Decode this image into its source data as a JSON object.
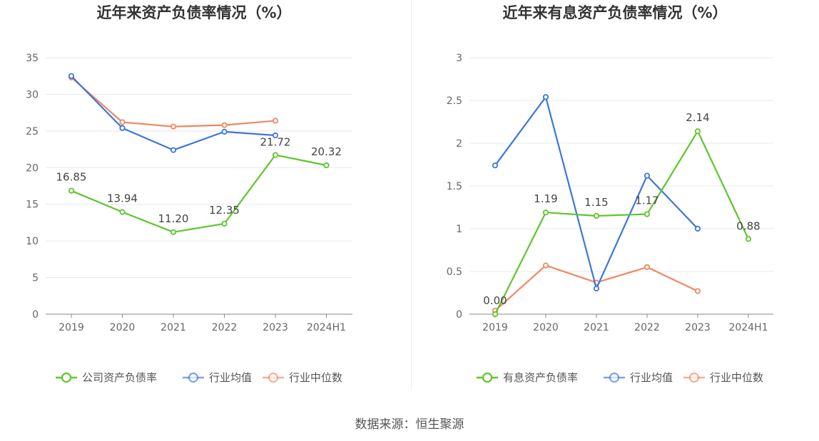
{
  "source": "数据来源：恒生聚源",
  "chart_data": [
    {
      "type": "line",
      "title": "近年来资产负债率情况（%）",
      "categories": [
        "2019",
        "2020",
        "2021",
        "2022",
        "2023",
        "2024H1"
      ],
      "yticks": [
        "0",
        "5",
        "10",
        "15",
        "20",
        "25",
        "30",
        "35"
      ],
      "ylim": [
        0,
        35
      ],
      "grid": true,
      "legend_position": "bottom-center",
      "series": [
        {
          "name": "公司资产负债率",
          "color": "#5cc72b",
          "values": [
            16.85,
            13.94,
            11.2,
            12.35,
            21.72,
            20.32
          ],
          "labels": [
            "16.85",
            "13.94",
            "11.20",
            "12.35",
            "21.72",
            "20.32"
          ]
        },
        {
          "name": "行业均值",
          "color": "#3b76dd",
          "values": [
            32.5,
            25.4,
            22.4,
            24.9,
            24.4,
            null
          ]
        },
        {
          "name": "行业中位数",
          "color": "#f0885f",
          "values": [
            32.3,
            26.2,
            25.6,
            25.8,
            26.4,
            null
          ]
        }
      ]
    },
    {
      "type": "line",
      "title": "近年来有息资产负债率情况（%）",
      "categories": [
        "2019",
        "2020",
        "2021",
        "2022",
        "2023",
        "2024H1"
      ],
      "yticks": [
        "0",
        "0.5",
        "1",
        "1.5",
        "2",
        "2.5",
        "3"
      ],
      "ylim": [
        0,
        3
      ],
      "grid": true,
      "legend_position": "bottom-center",
      "series": [
        {
          "name": "有息资产负债率",
          "color": "#5cc72b",
          "values": [
            0.0,
            1.19,
            1.15,
            1.17,
            2.14,
            0.88
          ],
          "labels": [
            "0.00",
            "1.19",
            "1.15",
            "1.17",
            "2.14",
            "0.88"
          ]
        },
        {
          "name": "行业均值",
          "color": "#3b76dd",
          "values": [
            1.74,
            2.54,
            0.3,
            1.62,
            1.0,
            null
          ]
        },
        {
          "name": "行业中位数",
          "color": "#f0885f",
          "values": [
            0.04,
            0.57,
            0.37,
            0.55,
            0.27,
            null
          ]
        }
      ]
    }
  ]
}
